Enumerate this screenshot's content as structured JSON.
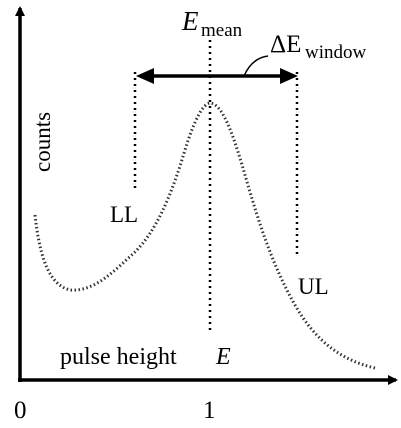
{
  "labels": {
    "e_mean": {
      "symbol": "E",
      "subscript": "mean"
    },
    "delta_e": {
      "symbol": "ΔE",
      "subscript": "window"
    },
    "y_axis": "counts",
    "x_axis": {
      "text": "pulse height",
      "symbol": "E"
    },
    "ll": "LL",
    "ul": "UL",
    "ticks": [
      "0",
      "1"
    ]
  }
}
